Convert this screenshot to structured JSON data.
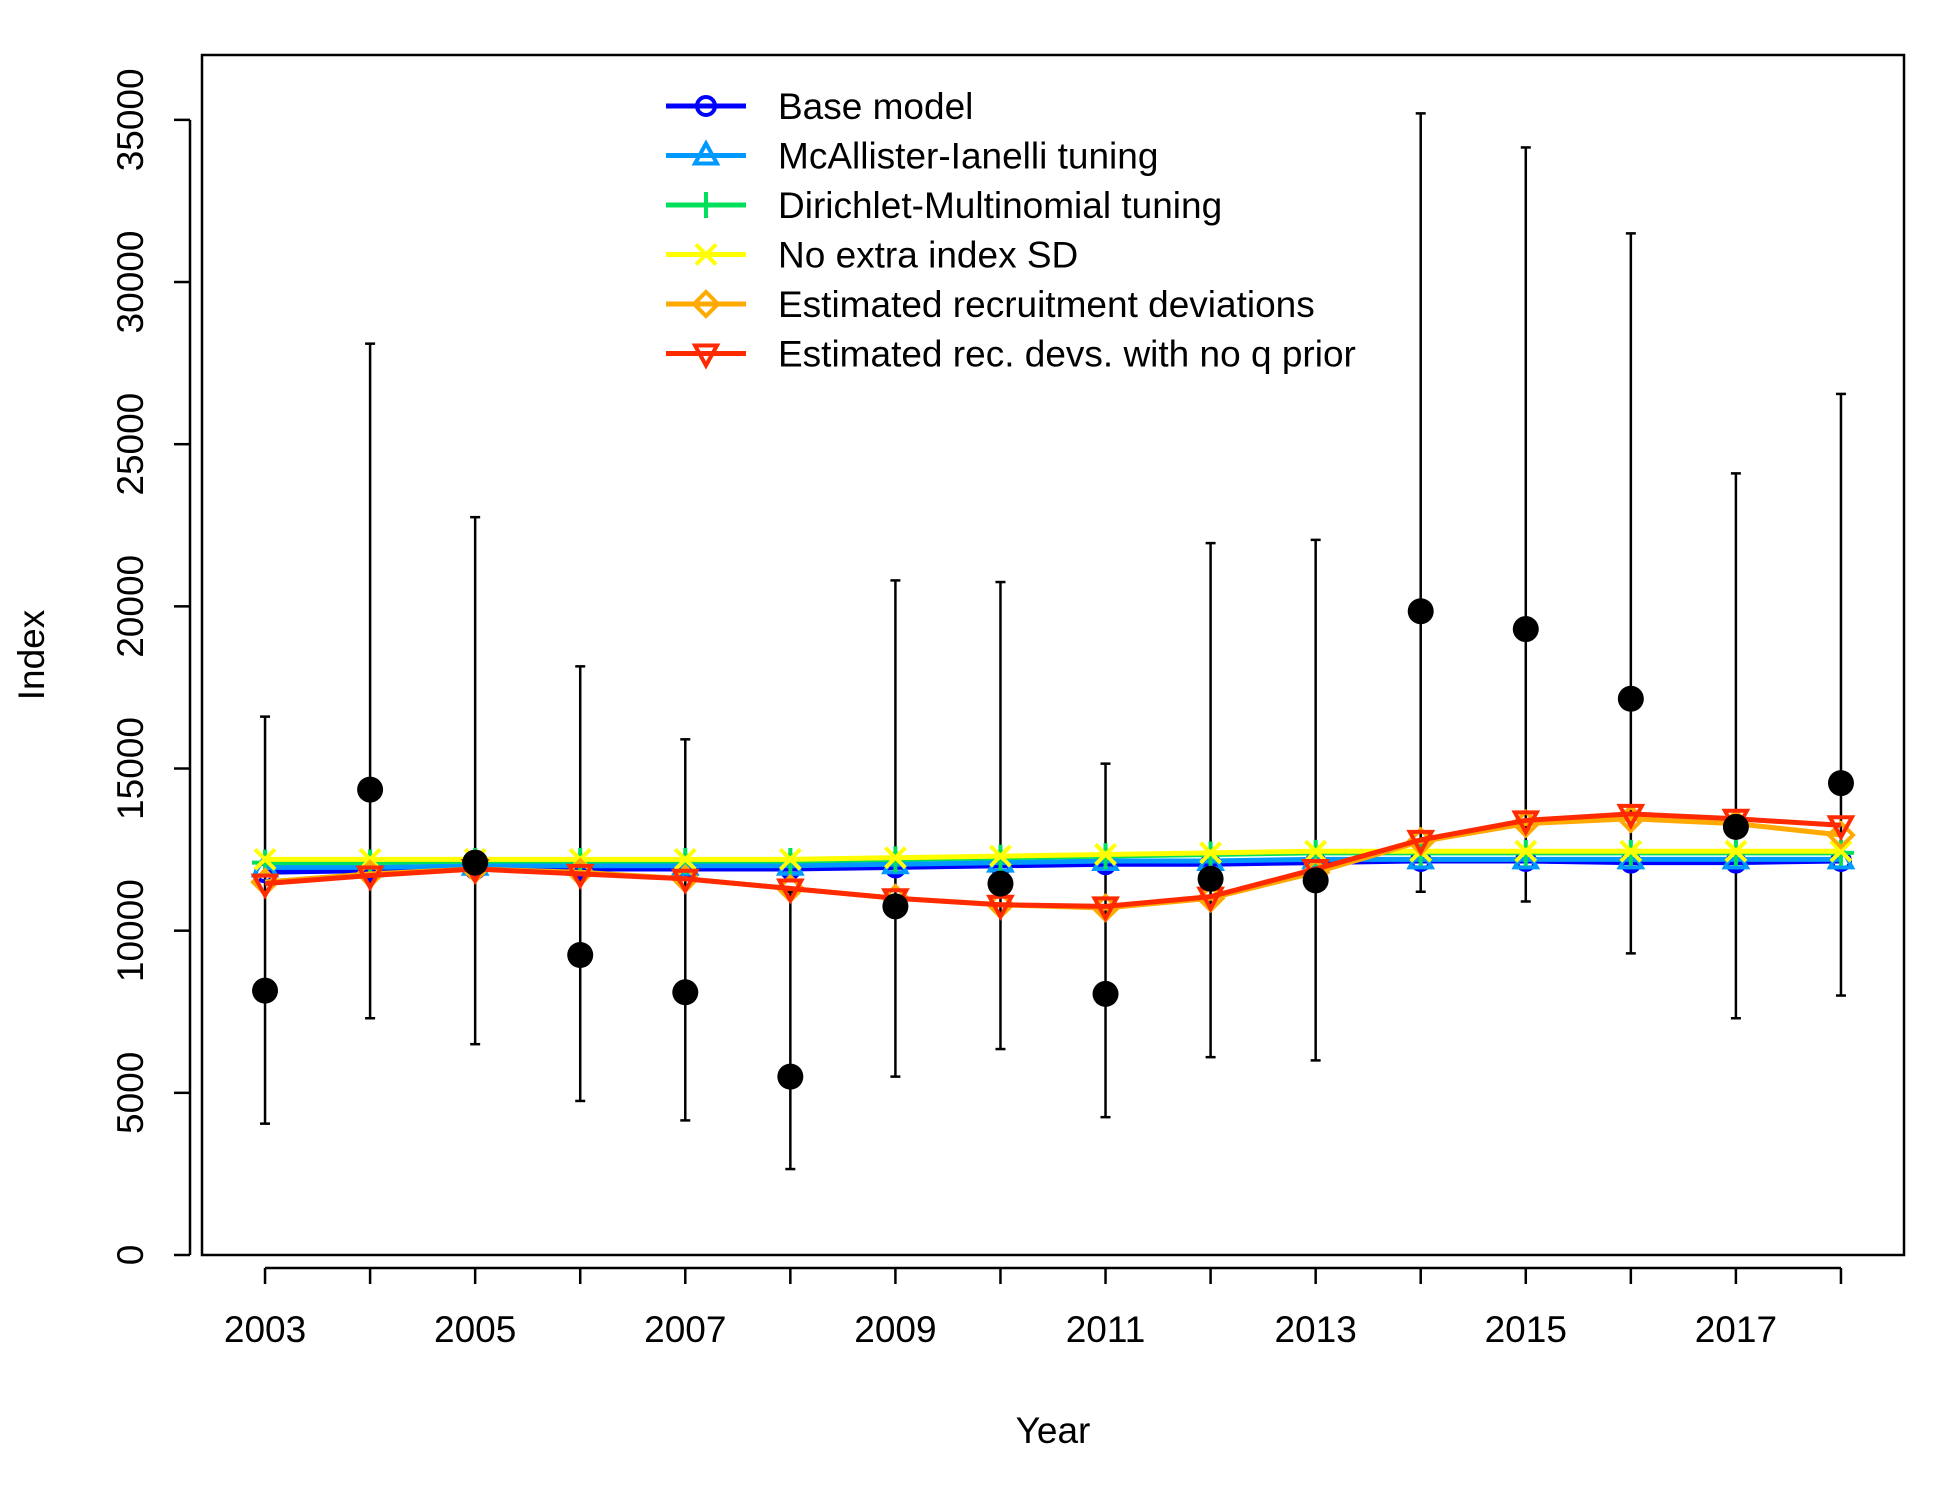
{
  "chart_data": {
    "type": "line",
    "xlabel": "Year",
    "ylabel": "Index",
    "xlim": [
      2002.4,
      2018.6
    ],
    "ylim": [
      0,
      37000
    ],
    "x_ticks": [
      2003,
      2005,
      2007,
      2009,
      2011,
      2013,
      2015,
      2017
    ],
    "x_minor_ticks": [
      2003,
      2004,
      2005,
      2006,
      2007,
      2008,
      2009,
      2010,
      2011,
      2012,
      2013,
      2014,
      2015,
      2016,
      2017,
      2018
    ],
    "y_ticks": [
      0,
      5000,
      10000,
      15000,
      20000,
      25000,
      30000,
      35000
    ],
    "legend_position": "top-center",
    "grid": false,
    "x": [
      2003,
      2004,
      2005,
      2006,
      2007,
      2008,
      2009,
      2010,
      2011,
      2012,
      2013,
      2014,
      2015,
      2016,
      2017,
      2018
    ],
    "observed": {
      "values": [
        8150,
        14350,
        12100,
        9250,
        8100,
        5500,
        10750,
        11450,
        8050,
        11600,
        11550,
        19850,
        19300,
        17150,
        13200,
        14550
      ],
      "lower": [
        4050,
        7300,
        6500,
        4750,
        4150,
        2650,
        5500,
        6350,
        4250,
        6100,
        6000,
        11200,
        10900,
        9300,
        7300,
        8000
      ],
      "upper": [
        16600,
        28100,
        22750,
        18150,
        15900,
        11200,
        20800,
        20750,
        15150,
        21950,
        22050,
        35200,
        34150,
        31500,
        24100,
        26550
      ],
      "color": "#000000"
    },
    "series": [
      {
        "name": "Base model",
        "color": "#0000ff",
        "marker": "circle",
        "values": [
          11800,
          11850,
          11900,
          11900,
          11900,
          11900,
          11950,
          12000,
          12050,
          12050,
          12100,
          12150,
          12150,
          12100,
          12100,
          12150
        ]
      },
      {
        "name": "McAllister-Ianelli tuning",
        "color": "#0099ff",
        "marker": "triangle-up",
        "values": [
          11950,
          11950,
          12000,
          12000,
          12000,
          12000,
          12050,
          12100,
          12150,
          12150,
          12200,
          12200,
          12200,
          12200,
          12200,
          12200
        ]
      },
      {
        "name": "Dirichlet-Multinomial tuning",
        "color": "#00e05a",
        "marker": "plus",
        "values": [
          12100,
          12100,
          12150,
          12150,
          12150,
          12150,
          12200,
          12250,
          12300,
          12350,
          12400,
          12400,
          12400,
          12400,
          12400,
          12400
        ]
      },
      {
        "name": "No extra index SD",
        "color": "#ffff00",
        "marker": "x",
        "values": [
          12200,
          12200,
          12200,
          12200,
          12200,
          12200,
          12250,
          12300,
          12350,
          12400,
          12450,
          12450,
          12450,
          12450,
          12450,
          12450
        ]
      },
      {
        "name": "Estimated recruitment deviations",
        "color": "#ffaa00",
        "marker": "diamond",
        "values": [
          11500,
          11750,
          11900,
          11800,
          11600,
          11300,
          11000,
          10800,
          10700,
          11000,
          11800,
          12750,
          13300,
          13450,
          13300,
          12950
        ]
      },
      {
        "name": "Estimated rec. devs. with no q prior",
        "color": "#ff2a00",
        "marker": "triangle-down",
        "values": [
          11450,
          11700,
          11900,
          11750,
          11600,
          11300,
          11000,
          10800,
          10750,
          11050,
          11900,
          12800,
          13400,
          13600,
          13450,
          13250
        ]
      }
    ]
  }
}
